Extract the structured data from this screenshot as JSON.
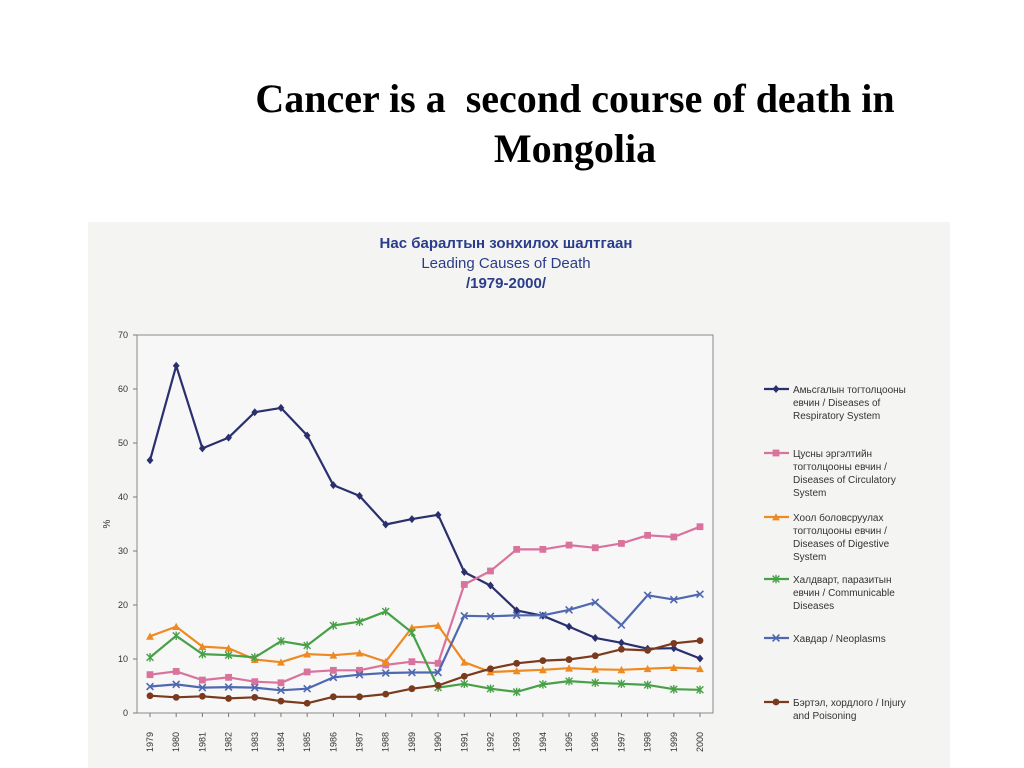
{
  "slide": {
    "title_line1": "Cancer is a  second course of death in",
    "title_line2": "Mongolia"
  },
  "chart_data": {
    "type": "line",
    "title_mn": "Нас баралтын зонхилох шалтгаан",
    "title": "Leading Causes of Death",
    "subtitle": "/1979-2000/",
    "ylabel": "%",
    "xlabel": "",
    "ylim": [
      0,
      70
    ],
    "yticks": [
      0,
      10,
      20,
      30,
      40,
      50,
      60,
      70
    ],
    "x": [
      "1979",
      "1980",
      "1981",
      "1982",
      "1983",
      "1984",
      "1985",
      "1986",
      "1987",
      "1988",
      "1989",
      "1990",
      "1991",
      "1992",
      "1993",
      "1994",
      "1995",
      "1996",
      "1997",
      "1998",
      "1999",
      "2000"
    ],
    "grid": false,
    "legend_position": "right",
    "series": [
      {
        "name": "Амьсгалын тогтолцооны евчин / Diseases of Respiratory System",
        "legend_lines": [
          "Амьсгалын тогтолцооны",
          "евчин / Diseases of",
          "Respiratory System"
        ],
        "color": "#2a2f6e",
        "marker": "diamond",
        "values": [
          46.8,
          64.3,
          49.0,
          51.0,
          55.7,
          56.5,
          51.4,
          42.2,
          40.2,
          34.9,
          35.9,
          36.7,
          26.1,
          23.6,
          19.0,
          18.0,
          16.0,
          13.9,
          13.0,
          11.9,
          12.0,
          10.1
        ]
      },
      {
        "name": "Цусны эргэлтийн тогтолцооны евчин / Diseases of Circulatory System",
        "legend_lines": [
          "Цусны эргэлтийн",
          "тогтолцооны евчин /",
          "Diseases of Circulatory",
          "System"
        ],
        "color": "#d9739d",
        "marker": "square",
        "values": [
          7.1,
          7.7,
          6.1,
          6.6,
          5.8,
          5.6,
          7.6,
          7.9,
          7.9,
          8.9,
          9.5,
          9.2,
          23.8,
          26.3,
          30.3,
          30.3,
          31.1,
          30.6,
          31.4,
          32.9,
          32.6,
          34.5
        ]
      },
      {
        "name": "Хоол боловсруулах тогтолцооны евчин / Diseases of Digestive System",
        "legend_lines": [
          "Хоол боловсруулах",
          "тогтолцооны евчин /",
          "Diseases of  Digestive",
          "System"
        ],
        "color": "#ee8a22",
        "marker": "triangle",
        "values": [
          14.2,
          16.0,
          12.3,
          12.0,
          9.9,
          9.4,
          10.9,
          10.7,
          11.1,
          9.5,
          15.8,
          16.2,
          9.4,
          7.6,
          7.8,
          8.0,
          8.3,
          8.1,
          8.0,
          8.2,
          8.4,
          8.2
        ]
      },
      {
        "name": "Халдварт, паразитын евчин / Communicable Diseases",
        "legend_lines": [
          "Халдварт, паразитын",
          "евчин / Communicable",
          "Diseases"
        ],
        "color": "#48a048",
        "marker": "star",
        "values": [
          10.3,
          14.3,
          10.9,
          10.7,
          10.3,
          13.3,
          12.5,
          16.2,
          16.9,
          18.8,
          14.9,
          4.7,
          5.4,
          4.5,
          3.9,
          5.3,
          5.9,
          5.6,
          5.4,
          5.2,
          4.4,
          4.3
        ]
      },
      {
        "name": "Хавдар / Neoplasms",
        "legend_lines": [
          "Хавдар / Neoplasms"
        ],
        "color": "#5068b0",
        "marker": "x",
        "values": [
          4.9,
          5.3,
          4.7,
          4.8,
          4.7,
          4.2,
          4.5,
          6.6,
          7.1,
          7.4,
          7.5,
          7.5,
          18.0,
          17.9,
          18.1,
          18.1,
          19.1,
          20.5,
          16.3,
          21.8,
          21.0,
          22.0
        ]
      },
      {
        "name": "Бэртэл, хордлого / Injury and Poisoning",
        "legend_lines": [
          "Бэртэл, хордлого / Injury",
          "and   Poisoning"
        ],
        "color": "#7a3a1e",
        "marker": "circle",
        "values": [
          3.2,
          2.9,
          3.1,
          2.7,
          2.9,
          2.2,
          1.8,
          3.0,
          3.0,
          3.5,
          4.5,
          5.1,
          6.8,
          8.2,
          9.2,
          9.7,
          9.9,
          10.6,
          11.8,
          11.6,
          12.9,
          13.4
        ]
      }
    ]
  }
}
